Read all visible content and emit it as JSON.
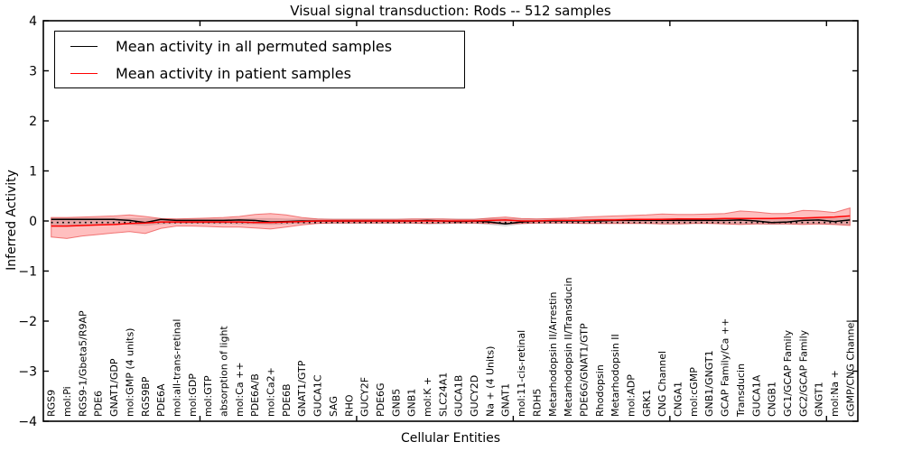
{
  "title": "Visual signal transduction: Rods -- 512 samples",
  "axes": {
    "xlabel": "Cellular Entities",
    "ylabel": "Inferred Activity",
    "yticklabels": [
      "4",
      "3",
      "2",
      "1",
      "0",
      "−1",
      "−2",
      "−3",
      "−4"
    ]
  },
  "legend": {
    "items": [
      {
        "label": "Mean activity in all permuted samples",
        "color": "#000000"
      },
      {
        "label": "Mean activity in patient samples",
        "color": "#ff0000"
      }
    ]
  },
  "colors": {
    "permuted_line": "#000000",
    "patient_line": "#ff0000",
    "patient_band_fill": "rgba(255,0,0,0.25)",
    "patient_band_edge": "rgba(230,30,30,0.55)",
    "permuted_band_fill": "rgba(0,0,0,0.13)",
    "permuted_band_edge": "rgba(0,0,0,0.10)",
    "spine": "#000000"
  },
  "chart_data": {
    "type": "line",
    "title": "Visual signal transduction: Rods -- 512 samples",
    "xlabel": "Cellular Entities",
    "ylabel": "Inferred Activity",
    "ylim": [
      -4,
      4
    ],
    "yticks": [
      4,
      3,
      2,
      1,
      0,
      -1,
      -2,
      -3,
      -4
    ],
    "xticks_major_values": [
      10,
      20,
      30,
      40,
      50
    ],
    "grid": false,
    "legend_position": "upper left",
    "categories": [
      "RGS9",
      "mol:Pi",
      "RGS9-1/Gbeta5/R9AP",
      "PDE6",
      "GNAT1/GDP",
      "mol:GMP (4 units)",
      "RGS9BP",
      "PDE6A",
      "mol:all-trans-retinal",
      "mol:GDP",
      "mol:GTP",
      "absorption of light",
      "mol:Ca ++",
      "PDE6A/B",
      "mol:Ca2+",
      "PDE6B",
      "GNAT1/GTP",
      "GUCA1C",
      "SAG",
      "RHO",
      "GUCY2F",
      "PDE6G",
      "GNB5",
      "GNB1",
      "mol:K +",
      "SLC24A1",
      "GUCA1B",
      "GUCY2D",
      "Na + (4 Units)",
      "GNAT1",
      "mol:11-cis-retinal",
      "RDH5",
      "Metarhodopsin II/Arrestin",
      "Metarhodopsin II/Transducin",
      "PDE6G/GNAT1/GTP",
      "Rhodopsin",
      "Metarhodopsin II",
      "mol:ADP",
      "GRK1",
      "CNG Channel",
      "CNGA1",
      "mol:cGMP",
      "GNB1/GNGT1",
      "GCAP Family/Ca ++",
      "Transducin",
      "GUCA1A",
      "CNGB1",
      "GC1/GCAP Family",
      "GC2/GCAP Family",
      "GNGT1",
      "mol:Na +",
      "cGMP/CNG Channel"
    ],
    "series": [
      {
        "name": "Mean activity in all permuted samples",
        "color": "#000000",
        "style": "solid",
        "values": [
          0.03,
          0.03,
          0.03,
          0.03,
          0.03,
          0.01,
          -0.03,
          0.03,
          0.01,
          0.01,
          0.01,
          0.01,
          0.02,
          0.01,
          -0.02,
          -0.01,
          0,
          0,
          0,
          0,
          0,
          0,
          0,
          0,
          0.01,
          0,
          -0.01,
          0,
          -0.02,
          -0.06,
          -0.02,
          0,
          0,
          0,
          0,
          0,
          0.01,
          0.01,
          0.01,
          0.01,
          0.01,
          0.01,
          0.01,
          0.01,
          0.02,
          0,
          -0.03,
          -0.02,
          0.01,
          0.02,
          -0.01,
          0.02
        ]
      },
      {
        "name": "Mean activity in patient samples",
        "color": "#ff0000",
        "style": "solid",
        "values": [
          -0.1,
          -0.1,
          -0.09,
          -0.08,
          -0.07,
          -0.05,
          -0.04,
          -0.02,
          -0.02,
          -0.02,
          -0.02,
          -0.02,
          -0.02,
          -0.03,
          -0.03,
          -0.02,
          -0.01,
          0,
          0,
          0,
          0,
          0,
          0,
          0,
          0,
          0,
          0,
          0,
          0.01,
          0.02,
          0,
          0,
          0.01,
          0.01,
          0.01,
          0.02,
          0.02,
          0.03,
          0.03,
          0.03,
          0.04,
          0.04,
          0.04,
          0.05,
          0.05,
          0.05,
          0.05,
          0.06,
          0.06,
          0.07,
          0.08,
          0.1
        ]
      },
      {
        "name": "zero reference (dotted)",
        "color": "#000000",
        "style": "dotted",
        "constant": -0.03
      }
    ],
    "bands": [
      {
        "name": "permuted samples range",
        "upper": [
          0.06,
          0.06,
          0.06,
          0.06,
          0.06,
          0.05,
          0.05,
          0.05,
          0.04,
          0.04,
          0.04,
          0.04,
          0.05,
          0.05,
          0.05,
          0.04,
          0.04,
          0.04,
          0.04,
          0.04,
          0.04,
          0.04,
          0.04,
          0.04,
          0.04,
          0.04,
          0.04,
          0.04,
          0.05,
          0.05,
          0.04,
          0.04,
          0.04,
          0.04,
          0.04,
          0.04,
          0.04,
          0.04,
          0.04,
          0.05,
          0.05,
          0.04,
          0.04,
          0.05,
          0.05,
          0.05,
          0.05,
          0.05,
          0.05,
          0.05,
          0.05,
          0.06
        ],
        "lower": [
          -0.08,
          -0.08,
          -0.08,
          -0.07,
          -0.07,
          -0.07,
          -0.09,
          -0.06,
          -0.05,
          -0.05,
          -0.05,
          -0.05,
          -0.06,
          -0.06,
          -0.07,
          -0.06,
          -0.05,
          -0.05,
          -0.05,
          -0.05,
          -0.05,
          -0.05,
          -0.05,
          -0.05,
          -0.06,
          -0.06,
          -0.05,
          -0.05,
          -0.07,
          -0.1,
          -0.06,
          -0.05,
          -0.05,
          -0.05,
          -0.05,
          -0.05,
          -0.05,
          -0.05,
          -0.05,
          -0.06,
          -0.06,
          -0.05,
          -0.05,
          -0.06,
          -0.06,
          -0.06,
          -0.07,
          -0.06,
          -0.06,
          -0.06,
          -0.07,
          -0.08
        ]
      },
      {
        "name": "patient samples range",
        "upper": [
          0.07,
          0.07,
          0.08,
          0.09,
          0.1,
          0.12,
          0.09,
          0.05,
          0.04,
          0.05,
          0.06,
          0.07,
          0.09,
          0.13,
          0.15,
          0.12,
          0.07,
          0.04,
          0.03,
          0.03,
          0.03,
          0.03,
          0.03,
          0.04,
          0.04,
          0.04,
          0.03,
          0.03,
          0.06,
          0.08,
          0.05,
          0.04,
          0.05,
          0.06,
          0.08,
          0.09,
          0.1,
          0.11,
          0.12,
          0.14,
          0.13,
          0.13,
          0.14,
          0.15,
          0.2,
          0.18,
          0.15,
          0.15,
          0.21,
          0.2,
          0.17,
          0.26
        ],
        "lower": [
          -0.32,
          -0.35,
          -0.3,
          -0.27,
          -0.24,
          -0.21,
          -0.25,
          -0.15,
          -0.1,
          -0.1,
          -0.11,
          -0.12,
          -0.12,
          -0.14,
          -0.16,
          -0.12,
          -0.08,
          -0.05,
          -0.04,
          -0.04,
          -0.04,
          -0.04,
          -0.04,
          -0.04,
          -0.05,
          -0.04,
          -0.04,
          -0.04,
          -0.05,
          -0.06,
          -0.05,
          -0.04,
          -0.04,
          -0.04,
          -0.05,
          -0.05,
          -0.05,
          -0.05,
          -0.05,
          -0.06,
          -0.06,
          -0.05,
          -0.05,
          -0.06,
          -0.07,
          -0.06,
          -0.06,
          -0.06,
          -0.07,
          -0.06,
          -0.07,
          -0.09
        ]
      }
    ]
  }
}
